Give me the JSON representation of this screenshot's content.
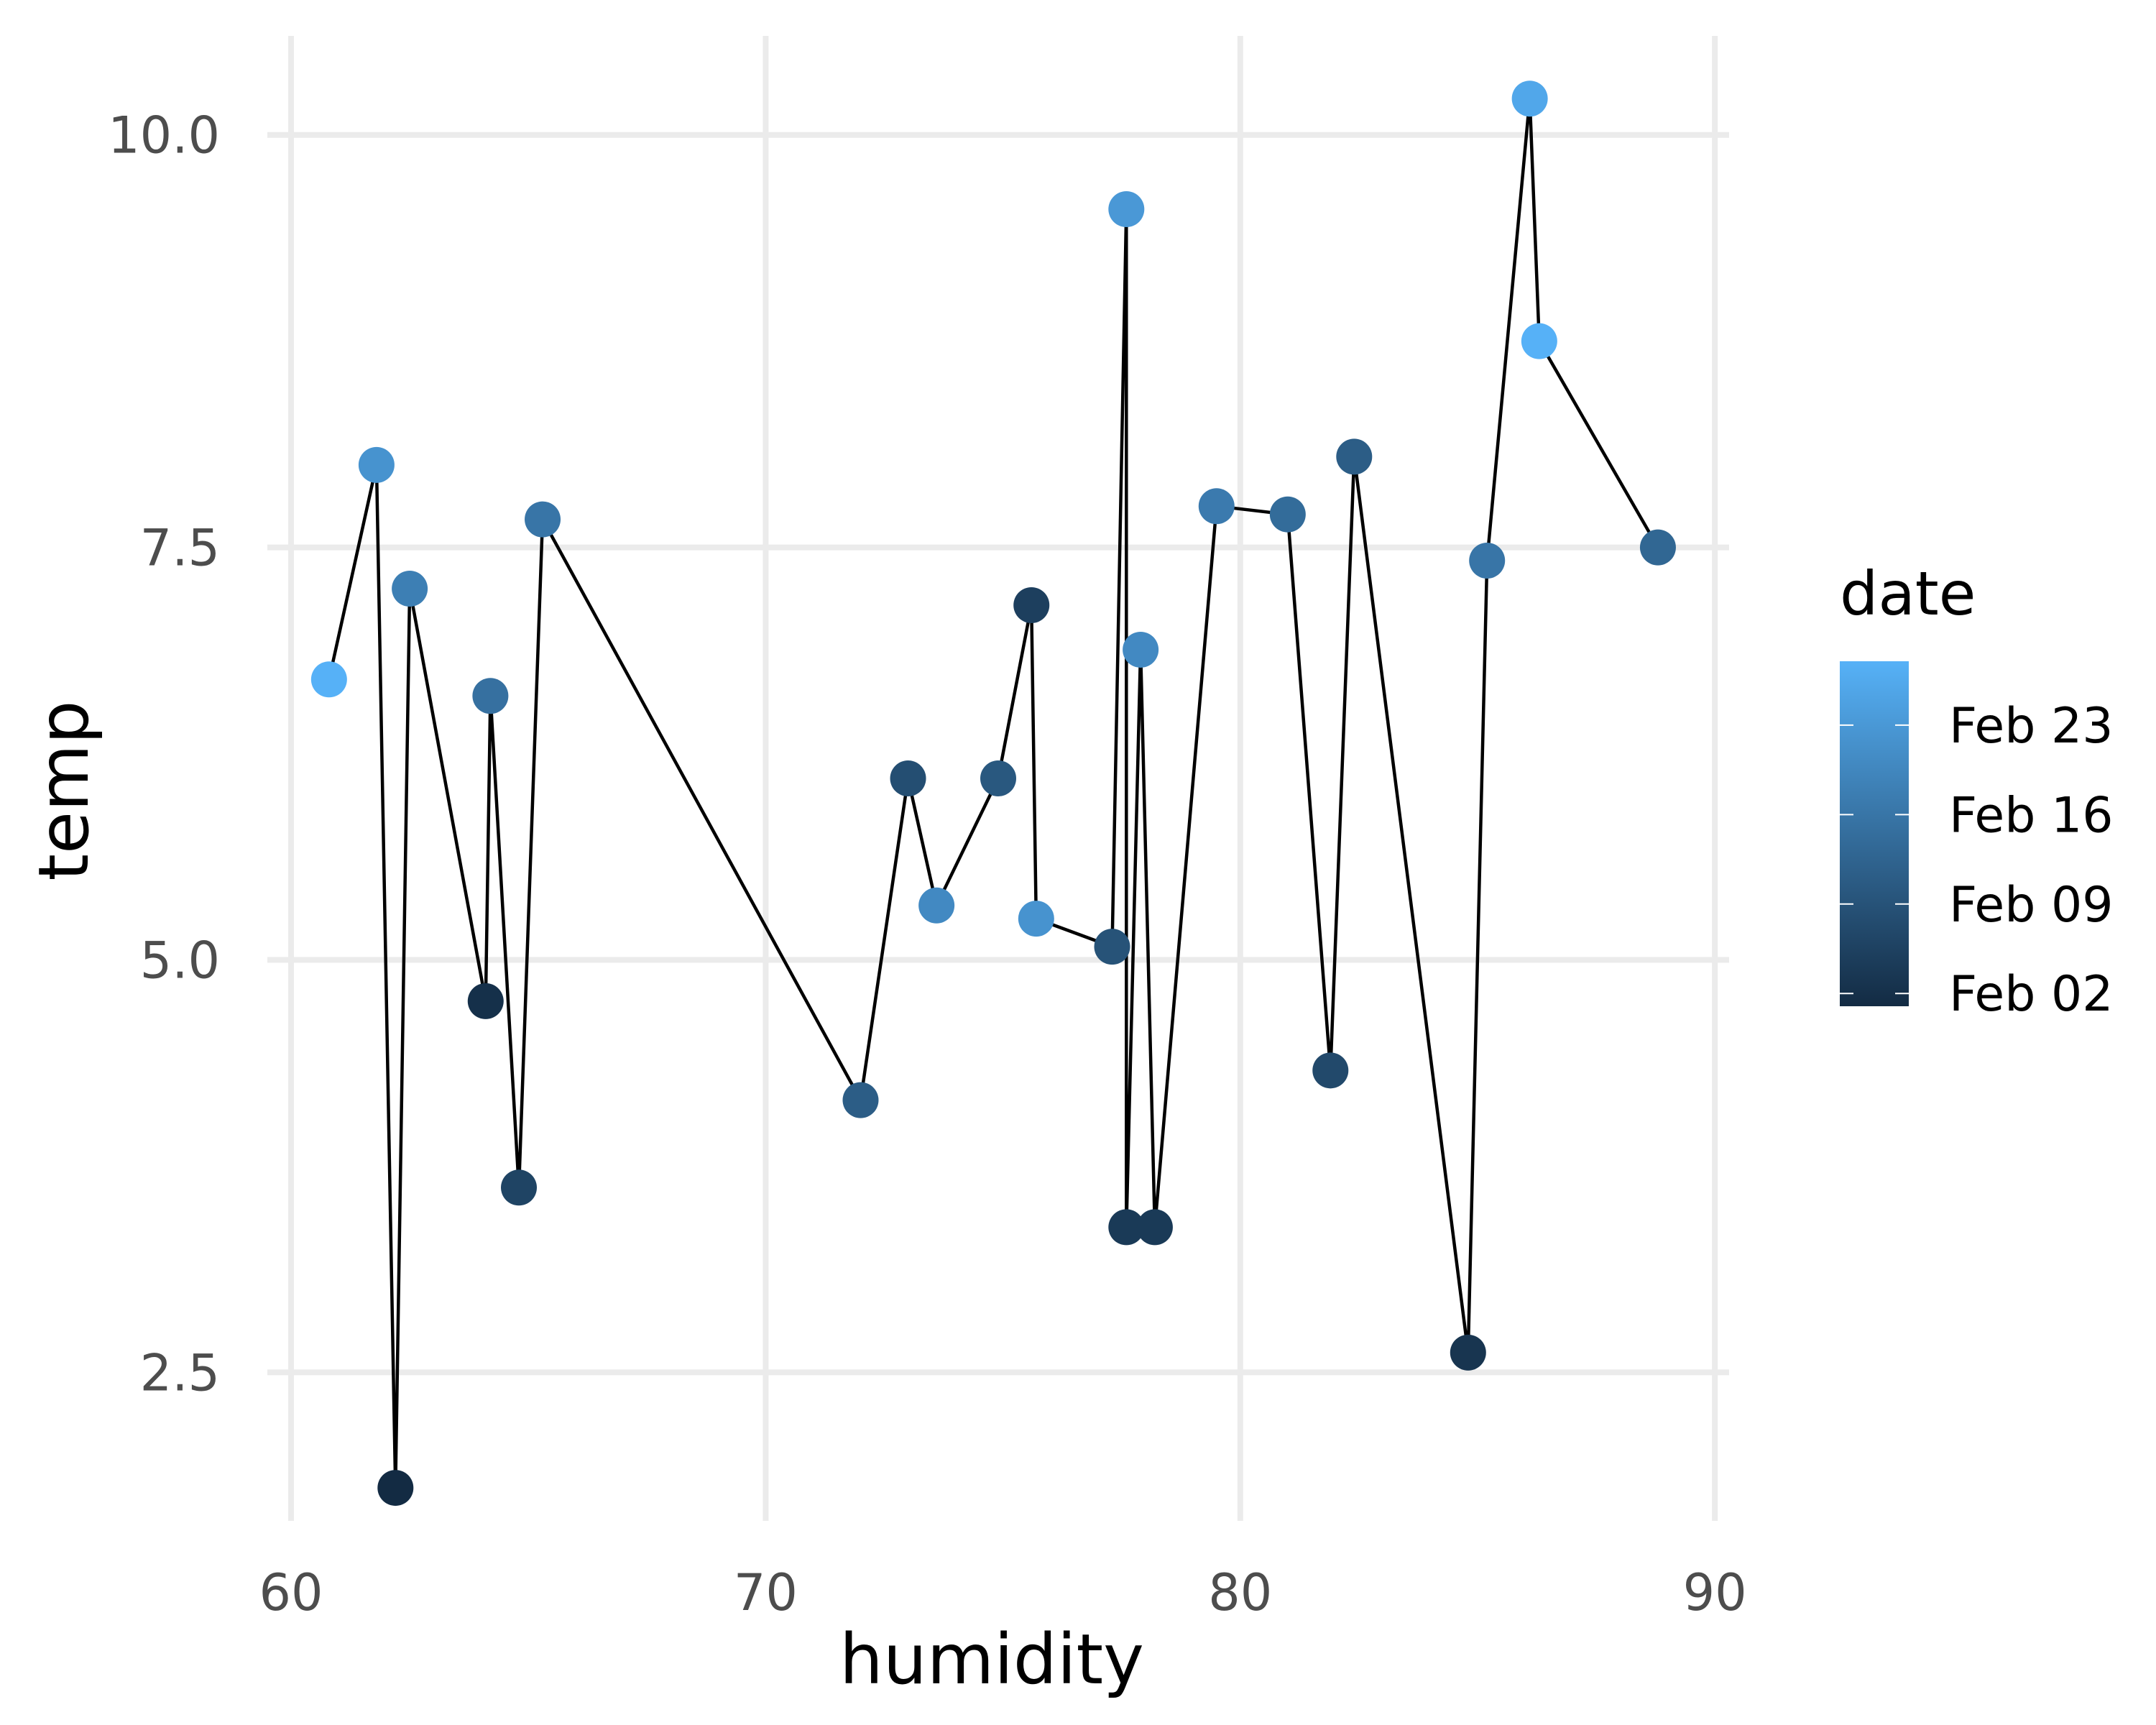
{
  "chart_data": {
    "type": "scatter",
    "xlabel": "humidity",
    "ylabel": "temp",
    "xlim": [
      59.5,
      90.3
    ],
    "ylim": [
      1.6,
      10.6
    ],
    "x_ticks": [
      60,
      70,
      80,
      90
    ],
    "y_ticks": [
      2.5,
      5.0,
      7.5,
      10.0
    ],
    "y_tick_labels": [
      "2.5",
      "5.0",
      "7.5",
      "10.0"
    ],
    "grid": true,
    "legend": {
      "title": "date",
      "type": "colorbar",
      "position": "right",
      "labels": [
        "Feb 23",
        "Feb 16",
        "Feb 09",
        "Feb 02"
      ],
      "color_low": "#132B43",
      "color_high": "#56B1F7"
    },
    "line_color": "#000000",
    "points": [
      {
        "x": 60.8,
        "y": 6.7,
        "date": "Feb 28"
      },
      {
        "x": 61.8,
        "y": 8.0,
        "date": "Feb 22"
      },
      {
        "x": 62.2,
        "y": 1.8,
        "date": "Feb 01"
      },
      {
        "x": 62.5,
        "y": 7.25,
        "date": "Feb 18"
      },
      {
        "x": 64.1,
        "y": 4.75,
        "date": "Feb 02"
      },
      {
        "x": 64.2,
        "y": 6.6,
        "date": "Feb 15"
      },
      {
        "x": 64.8,
        "y": 3.62,
        "date": "Feb 06"
      },
      {
        "x": 65.3,
        "y": 7.67,
        "date": "Feb 16"
      },
      {
        "x": 72.0,
        "y": 4.15,
        "date": "Feb 11"
      },
      {
        "x": 73.0,
        "y": 6.1,
        "date": "Feb 08"
      },
      {
        "x": 73.6,
        "y": 5.33,
        "date": "Feb 20"
      },
      {
        "x": 74.9,
        "y": 6.1,
        "date": "Feb 10"
      },
      {
        "x": 75.6,
        "y": 7.15,
        "date": "Feb 05"
      },
      {
        "x": 75.7,
        "y": 5.25,
        "date": "Feb 22"
      },
      {
        "x": 77.3,
        "y": 5.08,
        "date": "Feb 09"
      },
      {
        "x": 77.6,
        "y": 9.55,
        "date": "Feb 23"
      },
      {
        "x": 77.6,
        "y": 3.38,
        "date": "Feb 04"
      },
      {
        "x": 77.9,
        "y": 6.88,
        "date": "Feb 20"
      },
      {
        "x": 78.2,
        "y": 3.38,
        "date": "Feb 04"
      },
      {
        "x": 79.5,
        "y": 7.75,
        "date": "Feb 17"
      },
      {
        "x": 81.0,
        "y": 7.7,
        "date": "Feb 14"
      },
      {
        "x": 81.9,
        "y": 4.33,
        "date": "Feb 07"
      },
      {
        "x": 82.4,
        "y": 8.05,
        "date": "Feb 11"
      },
      {
        "x": 84.8,
        "y": 2.62,
        "date": "Feb 03"
      },
      {
        "x": 85.2,
        "y": 7.42,
        "date": "Feb 16"
      },
      {
        "x": 86.1,
        "y": 10.22,
        "date": "Feb 26"
      },
      {
        "x": 86.3,
        "y": 8.75,
        "date": "Feb 28"
      },
      {
        "x": 88.8,
        "y": 7.5,
        "date": "Feb 13"
      }
    ],
    "path_order": [
      0,
      1,
      2,
      3,
      4,
      5,
      6,
      7,
      8,
      9,
      10,
      11,
      12,
      13,
      14,
      15,
      16,
      17,
      18,
      19,
      20,
      21,
      22,
      23,
      24,
      25,
      26,
      27
    ]
  }
}
